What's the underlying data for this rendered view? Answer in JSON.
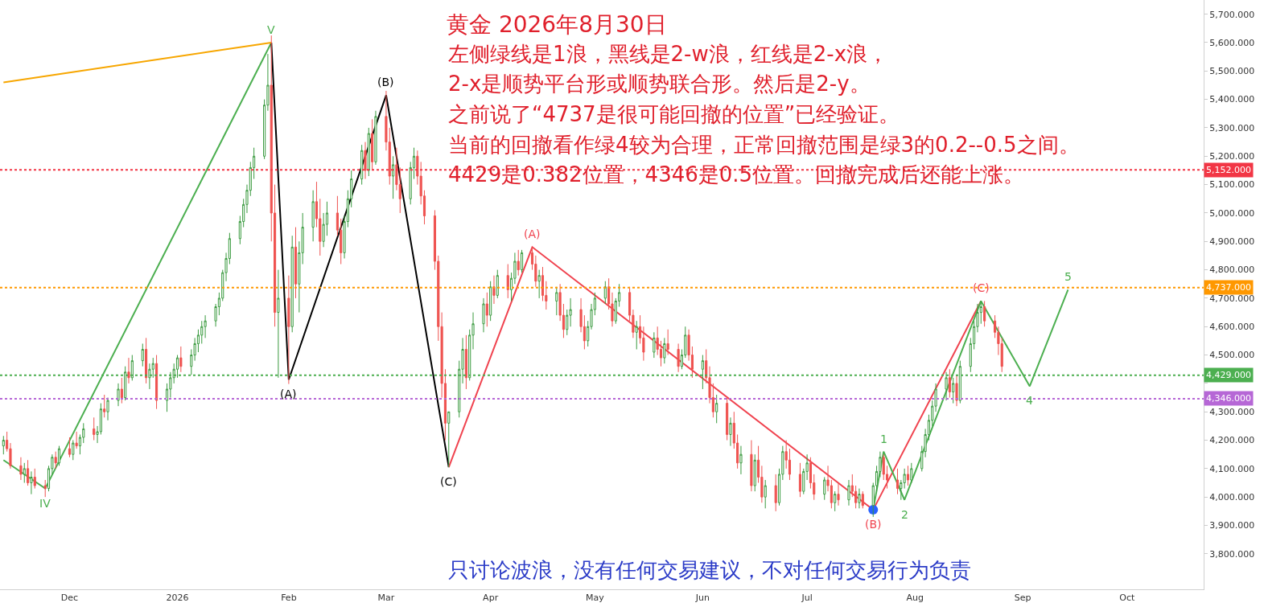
{
  "chart_data": {
    "type": "candlestick",
    "title": "黄金 2026年8月30日",
    "annotations": [
      "左侧绿线是1浪，黑线是2-w浪，红线是2-x浪，",
      "2-x是顺势平台形或顺势联合形。然后是2-y。",
      "之前说了“4737是很可能回撤的位置”已经验证。",
      "当前的回撤看作绿4较为合理，正常回撤范围是绿3的0.2--0.5之间。",
      "4429是0.382位置，4346是0.5位置。回撤完成后还能上涨。",
      "只讨论波浪，没有任何交易建议，不对任何交易行为负责",
      {
        "text": "IV",
        "x": "2025-11-24",
        "y": 4030
      },
      {
        "text": "V",
        "x": "2026-01-28",
        "y": 5600
      },
      {
        "text": "(A)",
        "x": "2026-02-02",
        "y": 4413
      },
      {
        "text": "(B)",
        "x": "2026-03-02",
        "y": 5415
      },
      {
        "text": "(C)",
        "x": "2026-03-20",
        "y": 4105
      },
      {
        "text": "(A)",
        "x": "2026-04-13",
        "y": 4880
      },
      {
        "text": "(B)",
        "x": "2026-07-20",
        "y": 3955
      },
      {
        "text": "(C)",
        "x": "2026-08-20",
        "y": 4690
      },
      {
        "text": "1",
        "x": "2026-07-23",
        "y": 4160
      },
      {
        "text": "2",
        "x": "2026-07-29",
        "y": 3990
      },
      {
        "text": "4",
        "x": "2026-09-03",
        "y": 4390
      },
      {
        "text": "5",
        "x": "2026-09-14",
        "y": 4730
      }
    ],
    "x": [
      "2025-11-12",
      "2025-11-13",
      "2025-11-14",
      "2025-11-17",
      "2025-11-18",
      "2025-11-19",
      "2025-11-20",
      "2025-11-21",
      "2025-11-24",
      "2025-11-25",
      "2025-11-26",
      "2025-11-27",
      "2025-11-28",
      "2025-12-01",
      "2025-12-02",
      "2025-12-03",
      "2025-12-04",
      "2025-12-05",
      "2025-12-08",
      "2025-12-09",
      "2025-12-10",
      "2025-12-11",
      "2025-12-12",
      "2025-12-15",
      "2025-12-16",
      "2025-12-17",
      "2025-12-18",
      "2025-12-19",
      "2025-12-22",
      "2025-12-23",
      "2025-12-24",
      "2025-12-25",
      "2025-12-26",
      "2025-12-29",
      "2025-12-30",
      "2025-12-31",
      "2026-01-01",
      "2026-01-02",
      "2026-01-05",
      "2026-01-06",
      "2026-01-07",
      "2026-01-08",
      "2026-01-09",
      "2026-01-12",
      "2026-01-13",
      "2026-01-14",
      "2026-01-15",
      "2026-01-16",
      "2026-01-19",
      "2026-01-20",
      "2026-01-21",
      "2026-01-22",
      "2026-01-23",
      "2026-01-26",
      "2026-01-27",
      "2026-01-28",
      "2026-01-29",
      "2026-01-30",
      "2026-02-02",
      "2026-02-03",
      "2026-02-04",
      "2026-02-05",
      "2026-02-06",
      "2026-02-09",
      "2026-02-10",
      "2026-02-11",
      "2026-02-12",
      "2026-02-13",
      "2026-02-16",
      "2026-02-17",
      "2026-02-18",
      "2026-02-19",
      "2026-02-20",
      "2026-02-23",
      "2026-02-24",
      "2026-02-25",
      "2026-02-26",
      "2026-02-27",
      "2026-03-02",
      "2026-03-03",
      "2026-03-04",
      "2026-03-05",
      "2026-03-06",
      "2026-03-09",
      "2026-03-10",
      "2026-03-11",
      "2026-03-12",
      "2026-03-13",
      "2026-03-16",
      "2026-03-17",
      "2026-03-18",
      "2026-03-19",
      "2026-03-20",
      "2026-03-23",
      "2026-03-24",
      "2026-03-25",
      "2026-03-26",
      "2026-03-27",
      "2026-03-30",
      "2026-03-31",
      "2026-04-01",
      "2026-04-02",
      "2026-04-03",
      "2026-04-06",
      "2026-04-07",
      "2026-04-08",
      "2026-04-09",
      "2026-04-10",
      "2026-04-13",
      "2026-04-14",
      "2026-04-15",
      "2026-04-16",
      "2026-04-17",
      "2026-04-20",
      "2026-04-21",
      "2026-04-22",
      "2026-04-23",
      "2026-04-24",
      "2026-04-27",
      "2026-04-28",
      "2026-04-29",
      "2026-04-30",
      "2026-05-01",
      "2026-05-04",
      "2026-05-05",
      "2026-05-06",
      "2026-05-07",
      "2026-05-08",
      "2026-05-11",
      "2026-05-12",
      "2026-05-13",
      "2026-05-14",
      "2026-05-15",
      "2026-05-18",
      "2026-05-19",
      "2026-05-20",
      "2026-05-21",
      "2026-05-22",
      "2026-05-25",
      "2026-05-26",
      "2026-05-27",
      "2026-05-28",
      "2026-05-29",
      "2026-06-01",
      "2026-06-02",
      "2026-06-03",
      "2026-06-04",
      "2026-06-05",
      "2026-06-08",
      "2026-06-09",
      "2026-06-10",
      "2026-06-11",
      "2026-06-12",
      "2026-06-15",
      "2026-06-16",
      "2026-06-17",
      "2026-06-18",
      "2026-06-19",
      "2026-06-22",
      "2026-06-23",
      "2026-06-24",
      "2026-06-25",
      "2026-06-26",
      "2026-06-29",
      "2026-06-30",
      "2026-07-01",
      "2026-07-02",
      "2026-07-03",
      "2026-07-06",
      "2026-07-07",
      "2026-07-08",
      "2026-07-09",
      "2026-07-10",
      "2026-07-13",
      "2026-07-14",
      "2026-07-15",
      "2026-07-16",
      "2026-07-17",
      "2026-07-20",
      "2026-07-21",
      "2026-07-22",
      "2026-07-23",
      "2026-07-24",
      "2026-07-27",
      "2026-07-28",
      "2026-07-29",
      "2026-07-30",
      "2026-07-31",
      "2026-08-03",
      "2026-08-04",
      "2026-08-05",
      "2026-08-06",
      "2026-08-07",
      "2026-08-10",
      "2026-08-11",
      "2026-08-12",
      "2026-08-13",
      "2026-08-14",
      "2026-08-17",
      "2026-08-18",
      "2026-08-19",
      "2026-08-20",
      "2026-08-21",
      "2026-08-24",
      "2026-08-25",
      "2026-08-26"
    ],
    "ohlc": [
      [
        4180,
        4215,
        4150,
        4200
      ],
      [
        4200,
        4230,
        4160,
        4170
      ],
      [
        4170,
        4190,
        4100,
        4110
      ],
      [
        4110,
        4140,
        4060,
        4080
      ],
      [
        4080,
        4120,
        4050,
        4100
      ],
      [
        4100,
        4130,
        4040,
        4050
      ],
      [
        4050,
        4090,
        4010,
        4070
      ],
      [
        4070,
        4100,
        4030,
        4040
      ],
      [
        4040,
        4060,
        4000,
        4030
      ],
      [
        4030,
        4110,
        4020,
        4100
      ],
      [
        4100,
        4150,
        4080,
        4140
      ],
      [
        4140,
        4160,
        4100,
        4120
      ],
      [
        4120,
        4180,
        4110,
        4170
      ],
      [
        4170,
        4210,
        4140,
        4150
      ],
      [
        4150,
        4200,
        4130,
        4190
      ],
      [
        4190,
        4230,
        4170,
        4180
      ],
      [
        4180,
        4220,
        4150,
        4210
      ],
      [
        4210,
        4260,
        4190,
        4240
      ],
      [
        4240,
        4280,
        4200,
        4220
      ],
      [
        4220,
        4250,
        4190,
        4230
      ],
      [
        4230,
        4330,
        4220,
        4310
      ],
      [
        4310,
        4360,
        4280,
        4300
      ],
      [
        4300,
        4350,
        4270,
        4340
      ],
      [
        4340,
        4400,
        4320,
        4380
      ],
      [
        4380,
        4420,
        4330,
        4350
      ],
      [
        4350,
        4460,
        4340,
        4440
      ],
      [
        4440,
        4490,
        4400,
        4420
      ],
      [
        4420,
        4500,
        4410,
        4480
      ],
      [
        4480,
        4540,
        4460,
        4520
      ],
      [
        4520,
        4560,
        4400,
        4420
      ],
      [
        4420,
        4470,
        4380,
        4450
      ],
      [
        4450,
        4490,
        4420,
        4470
      ],
      [
        4470,
        4500,
        4310,
        4340
      ],
      [
        4340,
        4400,
        4300,
        4380
      ],
      [
        4380,
        4440,
        4350,
        4420
      ],
      [
        4420,
        4470,
        4400,
        4450
      ],
      [
        4450,
        4500,
        4420,
        4490
      ],
      [
        4490,
        4530,
        4440,
        4460
      ],
      [
        4460,
        4520,
        4430,
        4500
      ],
      [
        4500,
        4560,
        4480,
        4540
      ],
      [
        4540,
        4590,
        4510,
        4570
      ],
      [
        4570,
        4620,
        4540,
        4600
      ],
      [
        4600,
        4640,
        4560,
        4620
      ],
      [
        4620,
        4680,
        4600,
        4670
      ],
      [
        4670,
        4720,
        4640,
        4700
      ],
      [
        4700,
        4800,
        4690,
        4790
      ],
      [
        4790,
        4860,
        4760,
        4840
      ],
      [
        4840,
        4930,
        4820,
        4910
      ],
      [
        4910,
        4990,
        4890,
        4970
      ],
      [
        4970,
        5050,
        4950,
        5030
      ],
      [
        5030,
        5100,
        5000,
        5080
      ],
      [
        5080,
        5180,
        5060,
        5160
      ],
      [
        5160,
        5230,
        5120,
        5200
      ],
      [
        5200,
        5400,
        5190,
        5380
      ],
      [
        5380,
        5560,
        5360,
        5450
      ],
      [
        5450,
        5625,
        4900,
        5000
      ],
      [
        5000,
        5100,
        4600,
        4650
      ],
      [
        4650,
        4800,
        4420,
        4700
      ],
      [
        4700,
        4780,
        4398,
        4600
      ],
      [
        4600,
        4920,
        4580,
        4880
      ],
      [
        4880,
        4950,
        4700,
        4750
      ],
      [
        4750,
        4900,
        4650,
        4860
      ],
      [
        4860,
        5000,
        4820,
        4950
      ],
      [
        4950,
        5080,
        4900,
        5040
      ],
      [
        5040,
        5110,
        4950,
        4980
      ],
      [
        4980,
        5050,
        4850,
        4900
      ],
      [
        4900,
        5000,
        4880,
        4960
      ],
      [
        4960,
        5040,
        4920,
        5000
      ],
      [
        5000,
        5060,
        4920,
        4940
      ],
      [
        4940,
        4980,
        4820,
        4860
      ],
      [
        4860,
        4990,
        4840,
        4970
      ],
      [
        4970,
        5080,
        4950,
        5050
      ],
      [
        5050,
        5150,
        5020,
        5120
      ],
      [
        5120,
        5240,
        5100,
        5220
      ],
      [
        5220,
        5250,
        5120,
        5150
      ],
      [
        5150,
        5300,
        5130,
        5280
      ],
      [
        5280,
        5330,
        5150,
        5180
      ],
      [
        5180,
        5360,
        5170,
        5340
      ],
      [
        5340,
        5430,
        5220,
        5250
      ],
      [
        5250,
        5300,
        5100,
        5130
      ],
      [
        5130,
        5200,
        5050,
        5170
      ],
      [
        5170,
        5230,
        5080,
        5100
      ],
      [
        5100,
        5160,
        5000,
        5050
      ],
      [
        5050,
        5180,
        5030,
        5160
      ],
      [
        5160,
        5230,
        5120,
        5200
      ],
      [
        5200,
        5220,
        5100,
        5130
      ],
      [
        5130,
        5180,
        5030,
        5060
      ],
      [
        5060,
        5080,
        4960,
        4990
      ],
      [
        4990,
        5010,
        4800,
        4830
      ],
      [
        4830,
        4850,
        4550,
        4600
      ],
      [
        4600,
        4650,
        4350,
        4400
      ],
      [
        4400,
        4450,
        4200,
        4260
      ],
      [
        4260,
        4300,
        4105,
        4300
      ],
      [
        4300,
        4480,
        4280,
        4450
      ],
      [
        4450,
        4560,
        4400,
        4520
      ],
      [
        4520,
        4570,
        4380,
        4420
      ],
      [
        4420,
        4590,
        4410,
        4570
      ],
      [
        4570,
        4650,
        4520,
        4610
      ],
      [
        4610,
        4700,
        4580,
        4680
      ],
      [
        4680,
        4720,
        4600,
        4640
      ],
      [
        4640,
        4760,
        4620,
        4740
      ],
      [
        4740,
        4780,
        4680,
        4710
      ],
      [
        4710,
        4800,
        4700,
        4780
      ],
      [
        4780,
        4820,
        4700,
        4730
      ],
      [
        4730,
        4790,
        4690,
        4770
      ],
      [
        4770,
        4860,
        4750,
        4830
      ],
      [
        4830,
        4870,
        4780,
        4800
      ],
      [
        4800,
        4870,
        4790,
        4860
      ],
      [
        4860,
        4880,
        4800,
        4820
      ],
      [
        4820,
        4850,
        4740,
        4760
      ],
      [
        4760,
        4800,
        4700,
        4780
      ],
      [
        4780,
        4810,
        4690,
        4710
      ],
      [
        4710,
        4760,
        4660,
        4690
      ],
      [
        4690,
        4740,
        4640,
        4720
      ],
      [
        4720,
        4750,
        4620,
        4640
      ],
      [
        4640,
        4680,
        4560,
        4590
      ],
      [
        4590,
        4660,
        4570,
        4640
      ],
      [
        4640,
        4700,
        4600,
        4660
      ],
      [
        4660,
        4700,
        4580,
        4600
      ],
      [
        4600,
        4640,
        4520,
        4550
      ],
      [
        4550,
        4620,
        4530,
        4600
      ],
      [
        4600,
        4680,
        4590,
        4660
      ],
      [
        4660,
        4720,
        4640,
        4700
      ],
      [
        4700,
        4760,
        4680,
        4740
      ],
      [
        4740,
        4770,
        4660,
        4680
      ],
      [
        4680,
        4720,
        4600,
        4620
      ],
      [
        4620,
        4700,
        4610,
        4690
      ],
      [
        4690,
        4750,
        4670,
        4720
      ],
      [
        4720,
        4740,
        4620,
        4640
      ],
      [
        4640,
        4660,
        4560,
        4580
      ],
      [
        4580,
        4620,
        4520,
        4600
      ],
      [
        4600,
        4640,
        4540,
        4560
      ],
      [
        4560,
        4600,
        4480,
        4510
      ],
      [
        4510,
        4580,
        4490,
        4560
      ],
      [
        4560,
        4600,
        4500,
        4520
      ],
      [
        4520,
        4550,
        4460,
        4490
      ],
      [
        4490,
        4560,
        4470,
        4540
      ],
      [
        4540,
        4590,
        4500,
        4520
      ],
      [
        4520,
        4540,
        4440,
        4460
      ],
      [
        4460,
        4520,
        4450,
        4500
      ],
      [
        4500,
        4600,
        4490,
        4570
      ],
      [
        4570,
        4590,
        4480,
        4500
      ],
      [
        4500,
        4530,
        4420,
        4450
      ],
      [
        4450,
        4500,
        4380,
        4480
      ],
      [
        4480,
        4520,
        4400,
        4420
      ],
      [
        4420,
        4460,
        4330,
        4350
      ],
      [
        4350,
        4400,
        4280,
        4300
      ],
      [
        4300,
        4360,
        4260,
        4330
      ],
      [
        4330,
        4350,
        4200,
        4220
      ],
      [
        4220,
        4280,
        4180,
        4260
      ],
      [
        4260,
        4300,
        4170,
        4190
      ],
      [
        4190,
        4220,
        4100,
        4120
      ],
      [
        4120,
        4180,
        4080,
        4150
      ],
      [
        4150,
        4200,
        4020,
        4040
      ],
      [
        4040,
        4150,
        4020,
        4130
      ],
      [
        4130,
        4180,
        4050,
        4070
      ],
      [
        4070,
        4110,
        3980,
        4000
      ],
      [
        4000,
        4060,
        3960,
        4040
      ],
      [
        4040,
        4080,
        3950,
        3980
      ],
      [
        3980,
        4100,
        3970,
        4080
      ],
      [
        4080,
        4180,
        4060,
        4160
      ],
      [
        4160,
        4200,
        4100,
        4130
      ],
      [
        4130,
        4170,
        4060,
        4080
      ],
      [
        4080,
        4120,
        4000,
        4020
      ],
      [
        4020,
        4100,
        4010,
        4090
      ],
      [
        4090,
        4150,
        4060,
        4120
      ],
      [
        4120,
        4140,
        4030,
        4050
      ],
      [
        4050,
        4080,
        3990,
        4010
      ],
      [
        4010,
        4070,
        3990,
        4060
      ],
      [
        4060,
        4110,
        4020,
        4040
      ],
      [
        4040,
        4060,
        3960,
        3980
      ],
      [
        3980,
        4020,
        3950,
        4010
      ],
      [
        4010,
        4050,
        3970,
        3990
      ],
      [
        3990,
        4060,
        3970,
        4040
      ],
      [
        4040,
        4080,
        4000,
        4020
      ],
      [
        4020,
        4040,
        3960,
        3980
      ],
      [
        3980,
        4030,
        3960,
        4010
      ],
      [
        4010,
        4020,
        3960,
        3970
      ],
      [
        3970,
        4050,
        3930,
        4040
      ],
      [
        4040,
        4110,
        4020,
        4090
      ],
      [
        4090,
        4160,
        4070,
        4140
      ],
      [
        4140,
        4150,
        4060,
        4080
      ],
      [
        4080,
        4110,
        4030,
        4060
      ],
      [
        4060,
        4100,
        4010,
        4030
      ],
      [
        4030,
        4060,
        3990,
        4050
      ],
      [
        4050,
        4100,
        4030,
        4080
      ],
      [
        4080,
        4110,
        4040,
        4060
      ],
      [
        4060,
        4120,
        4050,
        4100
      ],
      [
        4100,
        4180,
        4090,
        4160
      ],
      [
        4160,
        4240,
        4140,
        4220
      ],
      [
        4220,
        4290,
        4200,
        4270
      ],
      [
        4270,
        4340,
        4250,
        4320
      ],
      [
        4320,
        4400,
        4300,
        4380
      ],
      [
        4380,
        4440,
        4340,
        4420
      ],
      [
        4420,
        4450,
        4350,
        4370
      ],
      [
        4370,
        4420,
        4330,
        4400
      ],
      [
        4400,
        4430,
        4320,
        4340
      ],
      [
        4340,
        4480,
        4330,
        4460
      ],
      [
        4460,
        4560,
        4440,
        4540
      ],
      [
        4540,
        4620,
        4520,
        4600
      ],
      [
        4600,
        4680,
        4580,
        4650
      ],
      [
        4650,
        4690,
        4610,
        4670
      ],
      [
        4670,
        4690,
        4600,
        4620
      ],
      [
        4620,
        4640,
        4560,
        4580
      ],
      [
        4580,
        4600,
        4500,
        4540
      ],
      [
        4540,
        4560,
        4440,
        4460
      ]
    ],
    "series": [
      {
        "type": "line",
        "color": "#4caf50",
        "x": [
          "2025-11-12",
          "2025-11-24",
          "2026-01-28"
        ],
        "values": [
          4130,
          4030,
          5600
        ]
      },
      {
        "type": "line",
        "color": "#000000",
        "x": [
          "2026-01-28",
          "2026-02-02",
          "2026-03-02",
          "2026-03-20"
        ],
        "values": [
          5600,
          4413,
          5415,
          4105
        ]
      },
      {
        "type": "line",
        "color": "#f0434f",
        "x": [
          "2026-03-20",
          "2026-04-13",
          "2026-07-20",
          "2026-08-20"
        ],
        "values": [
          4105,
          4880,
          3955,
          4690
        ]
      },
      {
        "type": "line",
        "color": "#4caf50",
        "x": [
          "2026-07-20",
          "2026-07-23",
          "2026-07-29",
          "2026-08-20",
          "2026-09-03",
          "2026-09-14"
        ],
        "values": [
          3955,
          4160,
          3990,
          4690,
          4390,
          4730
        ]
      },
      {
        "type": "line",
        "color": "#f7a600",
        "x": [
          "2025-11-12",
          "2026-01-28"
        ],
        "values": [
          5460,
          5600
        ]
      },
      {
        "type": "scatter",
        "color": "#2962ff",
        "marker": "circle",
        "x": [
          "2026-07-20"
        ],
        "values": [
          3955
        ]
      }
    ],
    "ref_lines": [
      {
        "axis": "y",
        "value": 5152,
        "label": "5,152.000",
        "color": "#f23645",
        "line_style": "dotted"
      },
      {
        "axis": "y",
        "value": 4737,
        "label": "4,737.000",
        "color": "#ff9800",
        "line_style": "dotted"
      },
      {
        "axis": "y",
        "value": 4429,
        "label": "4,429.000",
        "color": "#4caf50",
        "line_style": "dotted"
      },
      {
        "axis": "y",
        "value": 4346,
        "label": "4,346.000",
        "color": "#b667d6",
        "line_style": "dotted"
      }
    ],
    "xlim": [
      "2025-11-11",
      "2026-10-23"
    ],
    "xticks": [
      {
        "value": "2025-12-01",
        "label": "Dec"
      },
      {
        "value": "2026-01-01",
        "label": "2026"
      },
      {
        "value": "2026-02-02",
        "label": "Feb"
      },
      {
        "value": "2026-03-02",
        "label": "Mar"
      },
      {
        "value": "2026-04-01",
        "label": "Apr"
      },
      {
        "value": "2026-05-01",
        "label": "May"
      },
      {
        "value": "2026-06-01",
        "label": "Jun"
      },
      {
        "value": "2026-07-01",
        "label": "Jul"
      },
      {
        "value": "2026-08-01",
        "label": "Aug"
      },
      {
        "value": "2026-09-01",
        "label": "Sep"
      },
      {
        "value": "2026-10-01",
        "label": "Oct"
      }
    ],
    "ylim": [
      3675,
      5750
    ],
    "yticks": [
      {
        "value": 3800,
        "label": "3,800.000"
      },
      {
        "value": 3900,
        "label": "3,900.000"
      },
      {
        "value": 4000,
        "label": "4,000.000"
      },
      {
        "value": 4100,
        "label": "4,100.000"
      },
      {
        "value": 4200,
        "label": "4,200.000"
      },
      {
        "value": 4300,
        "label": "4,300.000"
      },
      {
        "value": 4400,
        "label": null
      },
      {
        "value": 4500,
        "label": "4,500.000"
      },
      {
        "value": 4600,
        "label": "4,600.000"
      },
      {
        "value": 4700,
        "label": "4,700.000"
      },
      {
        "value": 4800,
        "label": "4,800.000"
      },
      {
        "value": 4900,
        "label": "4,900.000"
      },
      {
        "value": 5000,
        "label": "5,000.000"
      },
      {
        "value": 5100,
        "label": "5,100.000"
      },
      {
        "value": 5200,
        "label": "5,200.000"
      },
      {
        "value": 5300,
        "label": "5,300.000"
      },
      {
        "value": 5400,
        "label": "5,400.000"
      },
      {
        "value": 5500,
        "label": "5,500.000"
      },
      {
        "value": 5600,
        "label": "5,600.000"
      },
      {
        "value": 5700,
        "label": "5,700.000"
      }
    ],
    "line_style": "solid"
  }
}
